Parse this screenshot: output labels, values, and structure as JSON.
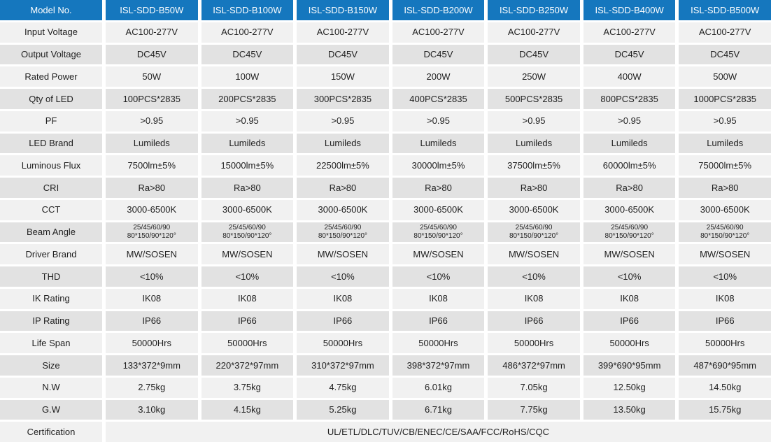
{
  "colors": {
    "header_bg": "#1577BE",
    "header_text": "#FFFFFF",
    "row_light": "#F1F1F1",
    "row_dark": "#E2E2E2",
    "text": "#1F1F1F"
  },
  "table": {
    "header": {
      "label": "Model No.",
      "models": [
        "ISL-SDD-B50W",
        "ISL-SDD-B100W",
        "ISL-SDD-B150W",
        "ISL-SDD-B200W",
        "ISL-SDD-B250W",
        "ISL-SDD-B400W",
        "ISL-SDD-B500W"
      ]
    },
    "rows": [
      {
        "label": "Input Voltage",
        "values": [
          "AC100-277V",
          "AC100-277V",
          "AC100-277V",
          "AC100-277V",
          "AC100-277V",
          "AC100-277V",
          "AC100-277V"
        ]
      },
      {
        "label": "Output Voltage",
        "values": [
          "DC45V",
          "DC45V",
          "DC45V",
          "DC45V",
          "DC45V",
          "DC45V",
          "DC45V"
        ]
      },
      {
        "label": "Rated Power",
        "values": [
          "50W",
          "100W",
          "150W",
          "200W",
          "250W",
          "400W",
          "500W"
        ]
      },
      {
        "label": "Qty of LED",
        "values": [
          "100PCS*2835",
          "200PCS*2835",
          "300PCS*2835",
          "400PCS*2835",
          "500PCS*2835",
          "800PCS*2835",
          "1000PCS*2835"
        ]
      },
      {
        "label": "PF",
        "values": [
          ">0.95",
          ">0.95",
          ">0.95",
          ">0.95",
          ">0.95",
          ">0.95",
          ">0.95"
        ]
      },
      {
        "label": "LED Brand",
        "values": [
          "Lumileds",
          "Lumileds",
          "Lumileds",
          "Lumileds",
          "Lumileds",
          "Lumileds",
          "Lumileds"
        ]
      },
      {
        "label": "Luminous Flux",
        "values": [
          "7500lm±5%",
          "15000lm±5%",
          "22500lm±5%",
          "30000lm±5%",
          "37500lm±5%",
          "60000lm±5%",
          "75000lm±5%"
        ]
      },
      {
        "label": "CRI",
        "values": [
          "Ra>80",
          "Ra>80",
          "Ra>80",
          "Ra>80",
          "Ra>80",
          "Ra>80",
          "Ra>80"
        ]
      },
      {
        "label": "CCT",
        "values": [
          "3000-6500K",
          "3000-6500K",
          "3000-6500K",
          "3000-6500K",
          "3000-6500K",
          "3000-6500K",
          "3000-6500K"
        ]
      },
      {
        "label": "Beam Angle",
        "values": [
          "25/45/60/90\n80*150/90*120°",
          "25/45/60/90\n80*150/90*120°",
          "25/45/60/90\n80*150/90*120°",
          "25/45/60/90\n80*150/90*120°",
          "25/45/60/90\n80*150/90*120°",
          "25/45/60/90\n80*150/90*120°",
          "25/45/60/90\n80*150/90*120°"
        ]
      },
      {
        "label": "Driver Brand",
        "values": [
          "MW/SOSEN",
          "MW/SOSEN",
          "MW/SOSEN",
          "MW/SOSEN",
          "MW/SOSEN",
          "MW/SOSEN",
          "MW/SOSEN"
        ]
      },
      {
        "label": "THD",
        "values": [
          "<10%",
          "<10%",
          "<10%",
          "<10%",
          "<10%",
          "<10%",
          "<10%"
        ]
      },
      {
        "label": "IK Rating",
        "values": [
          "IK08",
          "IK08",
          "IK08",
          "IK08",
          "IK08",
          "IK08",
          "IK08"
        ]
      },
      {
        "label": "IP Rating",
        "values": [
          "IP66",
          "IP66",
          "IP66",
          "IP66",
          "IP66",
          "IP66",
          "IP66"
        ]
      },
      {
        "label": "Life Span",
        "values": [
          "50000Hrs",
          "50000Hrs",
          "50000Hrs",
          "50000Hrs",
          "50000Hrs",
          "50000Hrs",
          "50000Hrs"
        ]
      },
      {
        "label": "Size",
        "values": [
          "133*372*9mm",
          "220*372*97mm",
          "310*372*97mm",
          "398*372*97mm",
          "486*372*97mm",
          "399*690*95mm",
          "487*690*95mm"
        ]
      },
      {
        "label": "N.W",
        "values": [
          "2.75kg",
          "3.75kg",
          "4.75kg",
          "6.01kg",
          "7.05kg",
          "12.50kg",
          "14.50kg"
        ]
      },
      {
        "label": "G.W",
        "values": [
          "3.10kg",
          "4.15kg",
          "5.25kg",
          "6.71kg",
          "7.75kg",
          "13.50kg",
          "15.75kg"
        ]
      },
      {
        "label": "Certification",
        "span_all": true,
        "values": [
          "UL/ETL/DLC/TUV/CB/ENEC/CE/SAA/FCC/RoHS/CQC"
        ]
      }
    ]
  }
}
